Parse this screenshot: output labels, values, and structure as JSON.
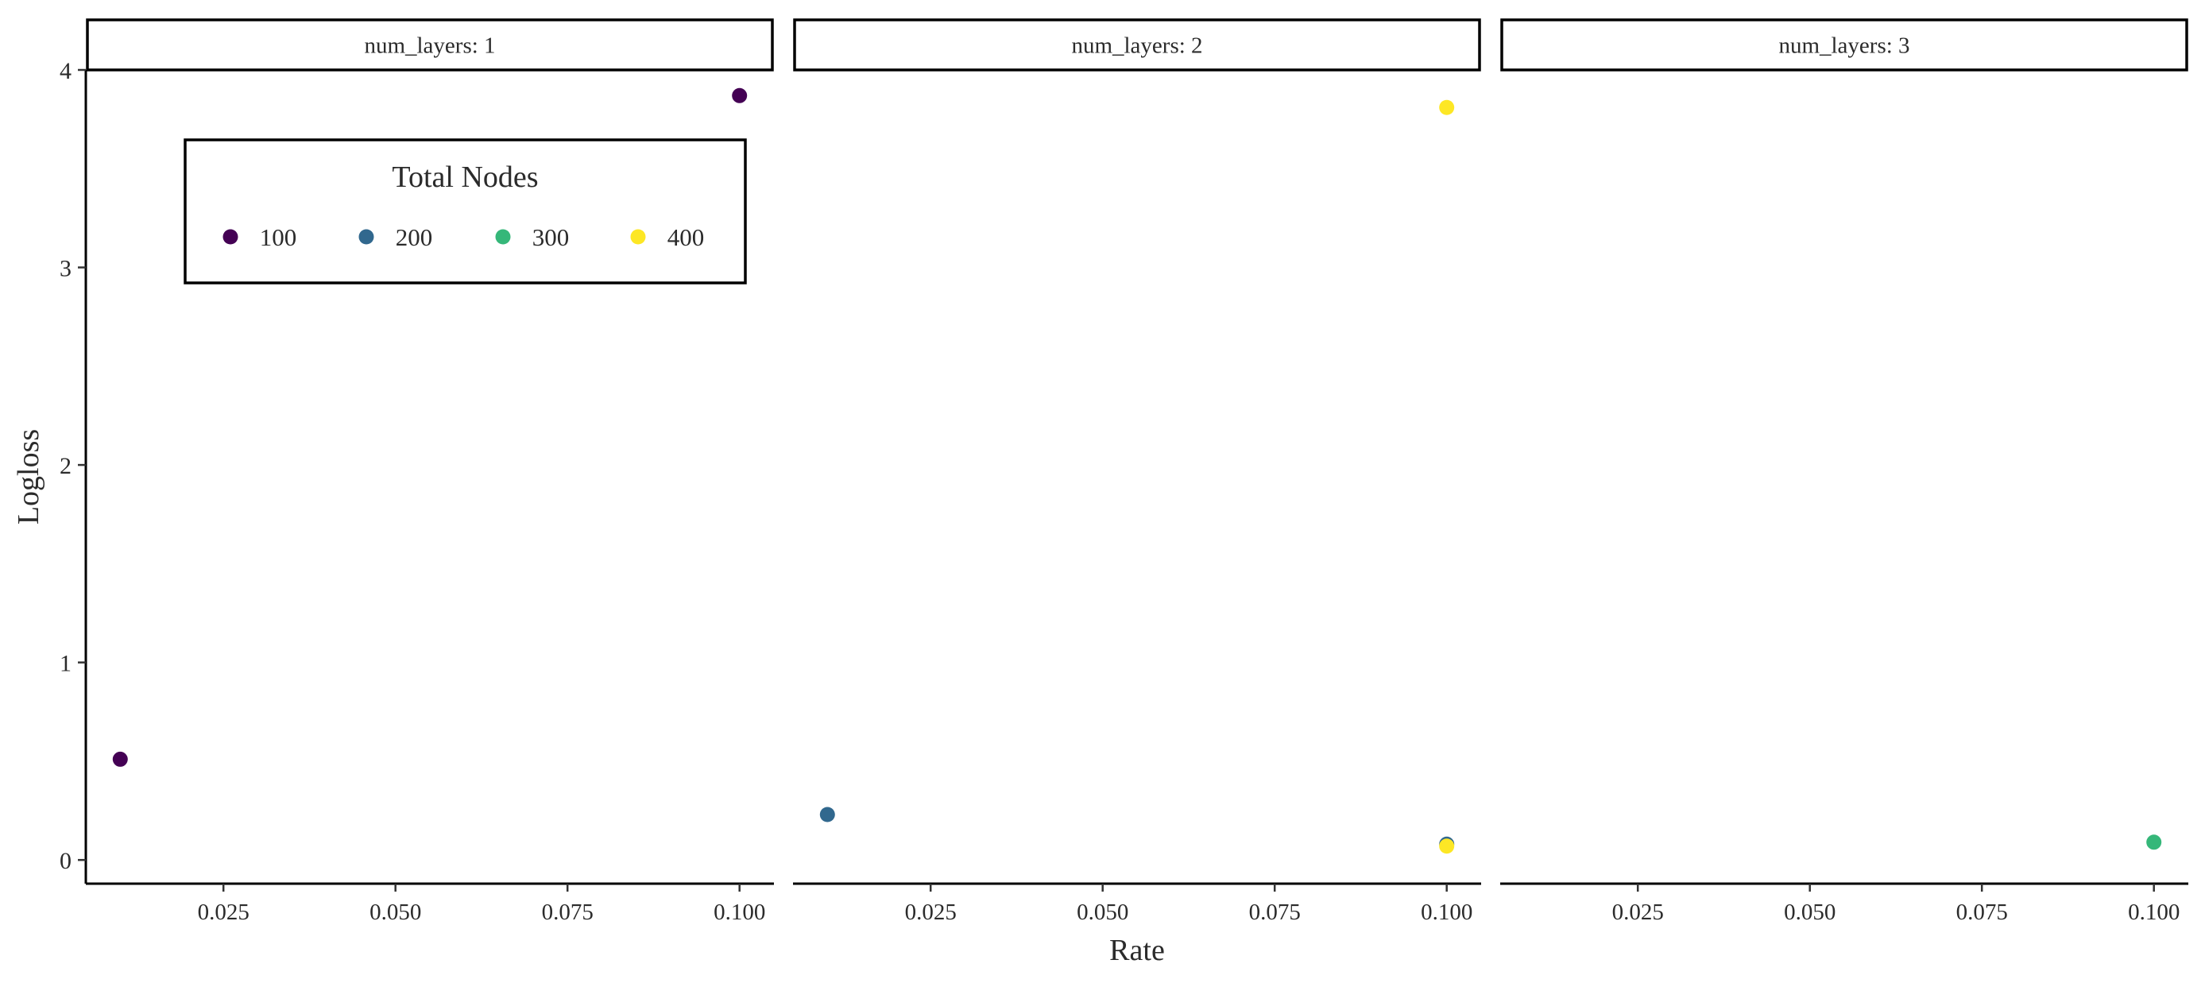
{
  "chart_data": {
    "type": "scatter",
    "facet_variable": "num_layers",
    "xlabel": "Rate",
    "ylabel": "Logloss",
    "xlim": [
      0.005,
      0.105
    ],
    "ylim": [
      -0.12,
      4.0
    ],
    "x_ticks": [
      0.025,
      0.05,
      0.075,
      0.1
    ],
    "x_tick_labels": [
      "0.025",
      "0.050",
      "0.075",
      "0.100"
    ],
    "y_ticks": [
      0,
      1,
      2,
      3,
      4
    ],
    "y_tick_labels": [
      "0",
      "1",
      "2",
      "3",
      "4"
    ],
    "grid": false,
    "legend": {
      "title": "Total Nodes",
      "placement": "inside-top-left of first panel",
      "items": [
        {
          "label": "100",
          "color": "#440154"
        },
        {
          "label": "200",
          "color": "#31688e"
        },
        {
          "label": "300",
          "color": "#35b779"
        },
        {
          "label": "400",
          "color": "#fde725"
        }
      ]
    },
    "panels": [
      {
        "strip": "num_layers: 1",
        "points": [
          {
            "x": 0.01,
            "y": 0.51,
            "total_nodes": "100"
          },
          {
            "x": 0.1,
            "y": 3.87,
            "total_nodes": "100"
          }
        ]
      },
      {
        "strip": "num_layers: 2",
        "points": [
          {
            "x": 0.01,
            "y": 0.23,
            "total_nodes": "200"
          },
          {
            "x": 0.1,
            "y": 3.81,
            "total_nodes": "400"
          },
          {
            "x": 0.1,
            "y": 0.08,
            "total_nodes": "200"
          },
          {
            "x": 0.1,
            "y": 0.07,
            "total_nodes": "400"
          }
        ]
      },
      {
        "strip": "num_layers: 3",
        "points": [
          {
            "x": 0.1,
            "y": 0.09,
            "total_nodes": "300"
          }
        ]
      }
    ]
  }
}
